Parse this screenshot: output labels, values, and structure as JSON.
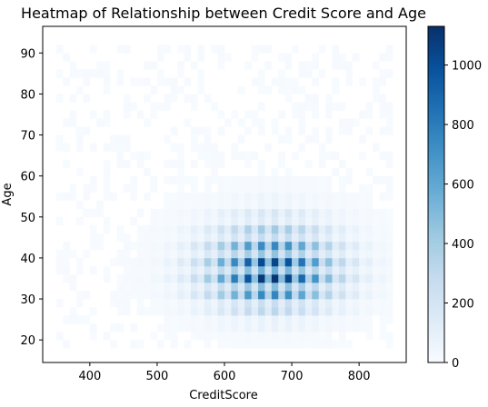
{
  "chart_data": {
    "type": "heatmap",
    "title": "Heatmap of Relationship between Credit Score and Age",
    "xlabel": "CreditScore",
    "ylabel": "Age",
    "xlim": [
      330,
      870
    ],
    "ylim": [
      14.5,
      96.5
    ],
    "xticks": [
      400,
      500,
      600,
      700,
      800
    ],
    "yticks": [
      20,
      30,
      40,
      50,
      60,
      70,
      80,
      90
    ],
    "bins": {
      "x_range": [
        350,
        850
      ],
      "y_range": [
        18,
        92
      ],
      "nx": 50,
      "ny": 37
    },
    "peaks": [
      {
        "credit_score": 685,
        "age": 37,
        "count": 1130
      },
      {
        "credit_score": 685,
        "age": 33,
        "count": 1100
      },
      {
        "credit_score": 590,
        "age": 38,
        "count": 700
      },
      {
        "credit_score": 640,
        "age": 38,
        "count": 780
      }
    ],
    "colorbar": {
      "min": 0,
      "max": 1130,
      "ticks": [
        0,
        200,
        400,
        600,
        800,
        1000
      ],
      "colormap": "Blues"
    },
    "grid": false,
    "legend": "none"
  }
}
